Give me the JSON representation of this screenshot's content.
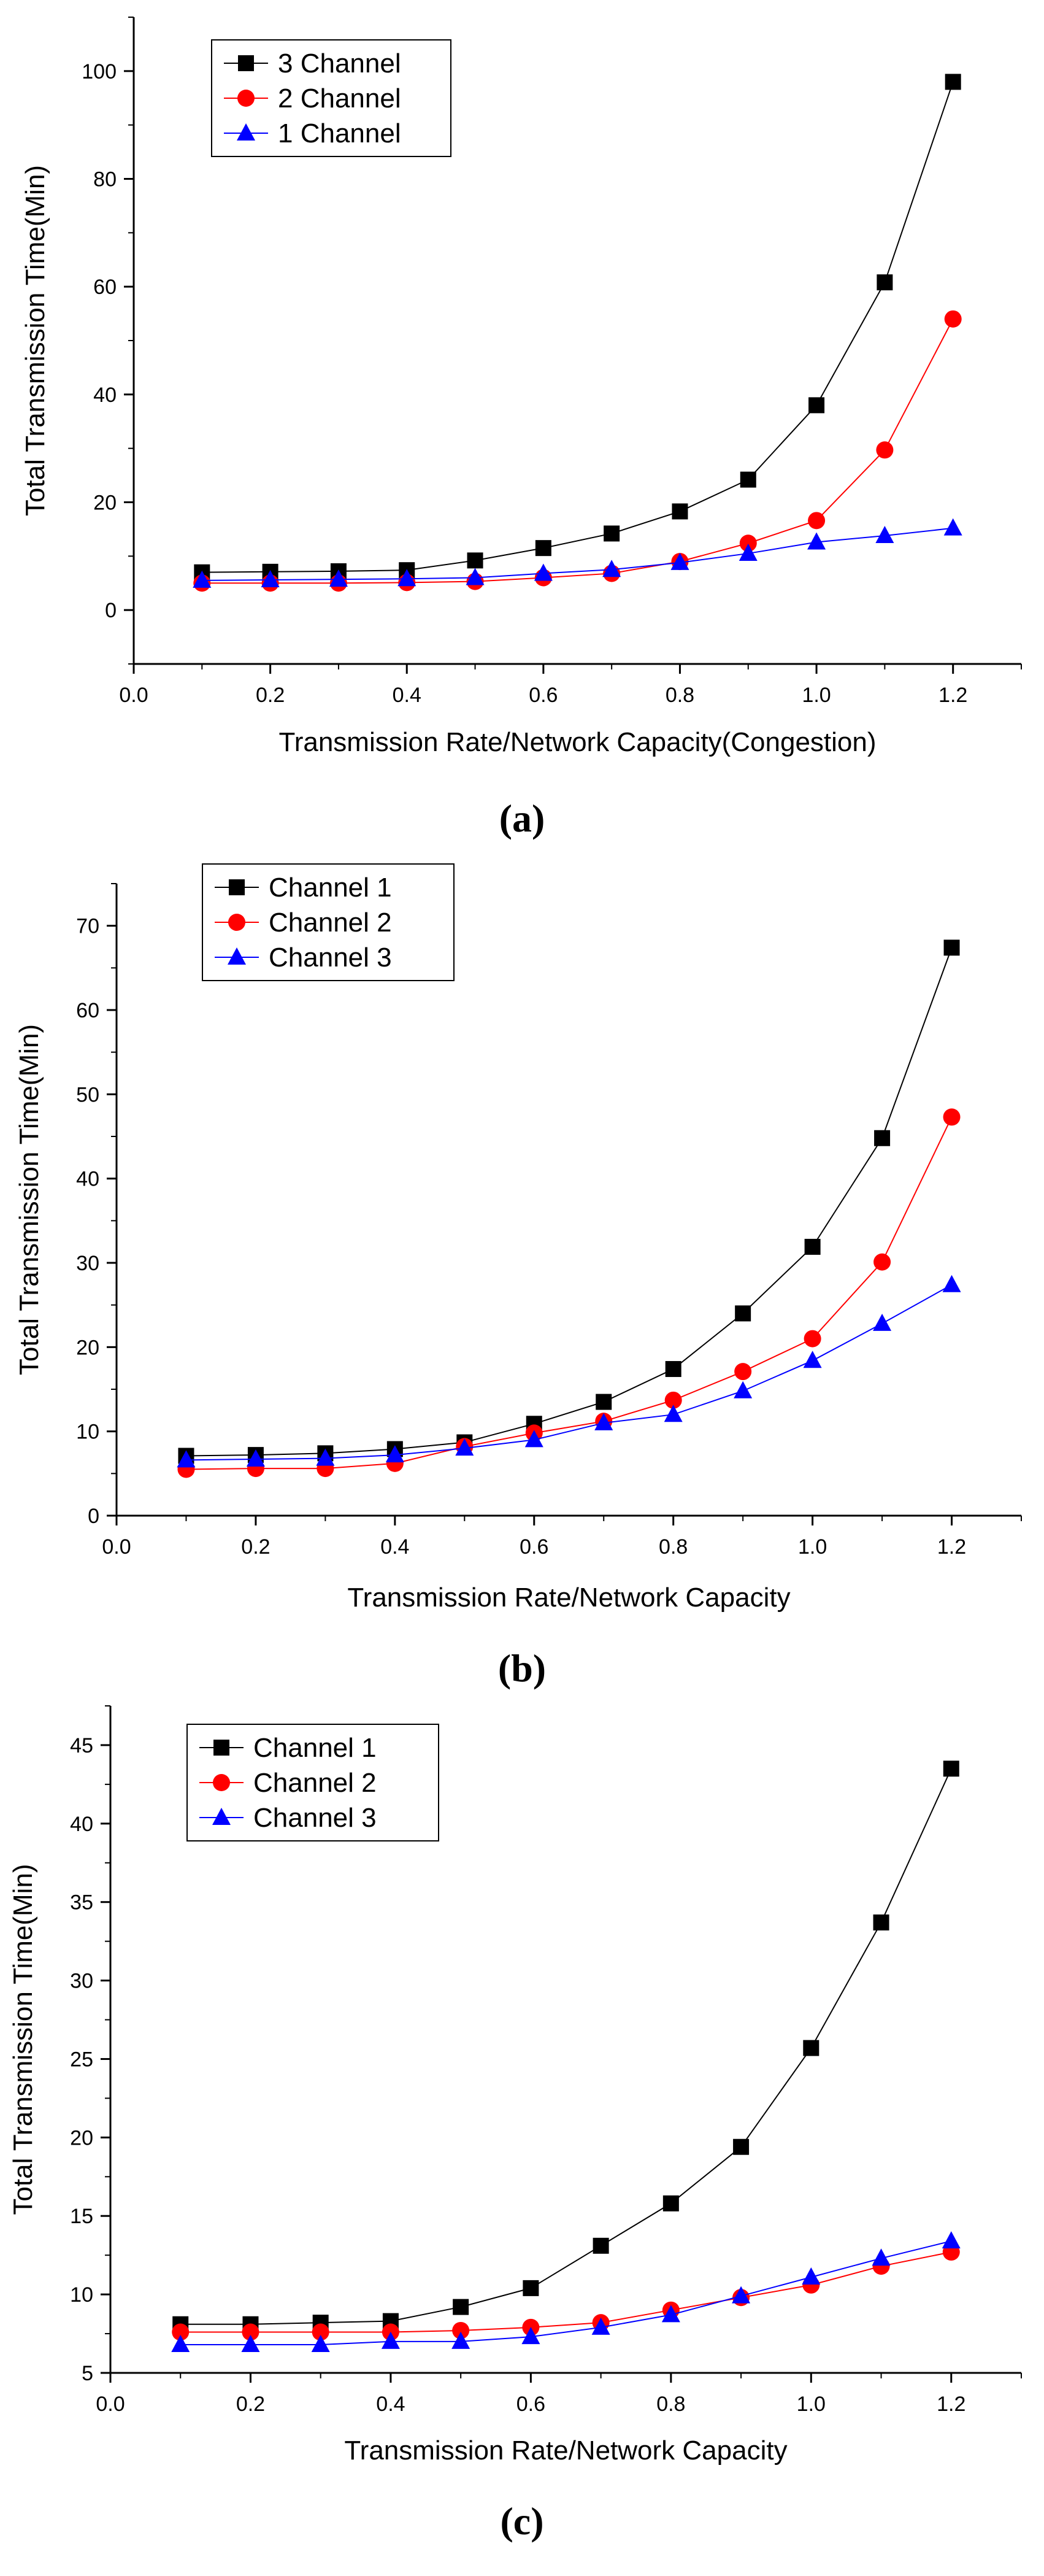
{
  "chart_data": [
    {
      "type": "line",
      "panel_label": "(a)",
      "xlabel": "Transmission Rate/Network Capacity(Congestion)",
      "ylabel": "Total Transmission Time(Min)",
      "xlim": [
        0.0,
        1.3
      ],
      "ylim": [
        -10,
        110
      ],
      "xticks": [
        0.0,
        0.2,
        0.4,
        0.6,
        0.8,
        1.0,
        1.2
      ],
      "xtick_labels": [
        "0.0",
        "0.2",
        "0.4",
        "0.6",
        "0.8",
        "1.0",
        "1.2"
      ],
      "yticks": [
        0,
        20,
        40,
        60,
        80,
        100
      ],
      "ytick_labels": [
        "0",
        "20",
        "40",
        "60",
        "80",
        "100"
      ],
      "x": [
        0.1,
        0.2,
        0.3,
        0.4,
        0.5,
        0.6,
        0.7,
        0.8,
        0.9,
        1.0,
        1.1,
        1.2
      ],
      "legend_position": "top-left",
      "series": [
        {
          "name": "3 Channel",
          "color": "#000000",
          "marker": "square",
          "values": [
            7.0,
            7.1,
            7.2,
            7.4,
            9.2,
            11.5,
            14.2,
            18.3,
            24.2,
            38.0,
            60.8,
            98.0
          ]
        },
        {
          "name": "2 Channel",
          "color": "#ff0000",
          "marker": "circle",
          "values": [
            5.0,
            5.0,
            5.0,
            5.1,
            5.3,
            6.0,
            6.8,
            9.0,
            12.4,
            16.6,
            29.7,
            54.0
          ]
        },
        {
          "name": "1 Channel",
          "color": "#0000ff",
          "marker": "triangle",
          "values": [
            5.5,
            5.6,
            5.7,
            5.8,
            6.0,
            6.8,
            7.5,
            8.8,
            10.5,
            12.6,
            13.8,
            15.2
          ]
        }
      ]
    },
    {
      "type": "line",
      "panel_label": "(b)",
      "xlabel": "Transmission Rate/Network Capacity",
      "ylabel": "Total Transmission Time(Min)",
      "xlim": [
        0.0,
        1.3
      ],
      "ylim": [
        0,
        75
      ],
      "xticks": [
        0.0,
        0.2,
        0.4,
        0.6,
        0.8,
        1.0,
        1.2
      ],
      "xtick_labels": [
        "0.0",
        "0.2",
        "0.4",
        "0.6",
        "0.8",
        "1.0",
        "1.2"
      ],
      "yticks": [
        0,
        10,
        20,
        30,
        40,
        50,
        60,
        70
      ],
      "ytick_labels": [
        "0",
        "10",
        "20",
        "30",
        "40",
        "50",
        "60",
        "70"
      ],
      "x": [
        0.1,
        0.2,
        0.3,
        0.4,
        0.5,
        0.6,
        0.7,
        0.8,
        0.9,
        1.0,
        1.1,
        1.2
      ],
      "legend_position": "top-left",
      "series": [
        {
          "name": "Channel 1",
          "color": "#000000",
          "marker": "square",
          "values": [
            7.1,
            7.2,
            7.4,
            7.9,
            8.7,
            10.9,
            13.5,
            17.4,
            24.0,
            31.9,
            44.8,
            67.4
          ]
        },
        {
          "name": "Channel 2",
          "color": "#ff0000",
          "marker": "circle",
          "values": [
            5.5,
            5.6,
            5.6,
            6.2,
            8.2,
            9.8,
            11.2,
            13.7,
            17.1,
            21.0,
            30.1,
            47.3
          ]
        },
        {
          "name": "Channel 3",
          "color": "#0000ff",
          "marker": "triangle",
          "values": [
            6.6,
            6.7,
            6.8,
            7.2,
            8.0,
            9.0,
            11.0,
            12.0,
            14.8,
            18.4,
            22.8,
            27.4
          ]
        }
      ]
    },
    {
      "type": "line",
      "panel_label": "(c)",
      "xlabel": "Transmission Rate/Network Capacity",
      "ylabel": "Total Transmission Time(Min)",
      "xlim": [
        0.0,
        1.3
      ],
      "ylim": [
        5,
        47.5
      ],
      "xticks": [
        0.0,
        0.2,
        0.4,
        0.6,
        0.8,
        1.0,
        1.2
      ],
      "xtick_labels": [
        "0.0",
        "0.2",
        "0.4",
        "0.6",
        "0.8",
        "1.0",
        "1.2"
      ],
      "yticks": [
        5,
        10,
        15,
        20,
        25,
        30,
        35,
        40,
        45
      ],
      "ytick_labels": [
        "5",
        "10",
        "15",
        "20",
        "25",
        "30",
        "35",
        "40",
        "45"
      ],
      "x": [
        0.1,
        0.2,
        0.3,
        0.4,
        0.5,
        0.6,
        0.7,
        0.8,
        0.9,
        1.0,
        1.1,
        1.2
      ],
      "legend_position": "top-left",
      "series": [
        {
          "name": "Channel 1",
          "color": "#000000",
          "marker": "square",
          "values": [
            8.1,
            8.1,
            8.2,
            8.3,
            9.2,
            10.4,
            13.1,
            15.8,
            19.4,
            25.7,
            33.7,
            43.5
          ]
        },
        {
          "name": "Channel 2",
          "color": "#ff0000",
          "marker": "circle",
          "values": [
            7.6,
            7.6,
            7.6,
            7.6,
            7.7,
            7.9,
            8.2,
            9.0,
            9.8,
            10.6,
            11.8,
            12.7
          ]
        },
        {
          "name": "Channel 3",
          "color": "#0000ff",
          "marker": "triangle",
          "values": [
            6.8,
            6.8,
            6.8,
            7.0,
            7.0,
            7.3,
            7.9,
            8.7,
            9.9,
            11.1,
            12.3,
            13.4
          ]
        }
      ]
    }
  ]
}
